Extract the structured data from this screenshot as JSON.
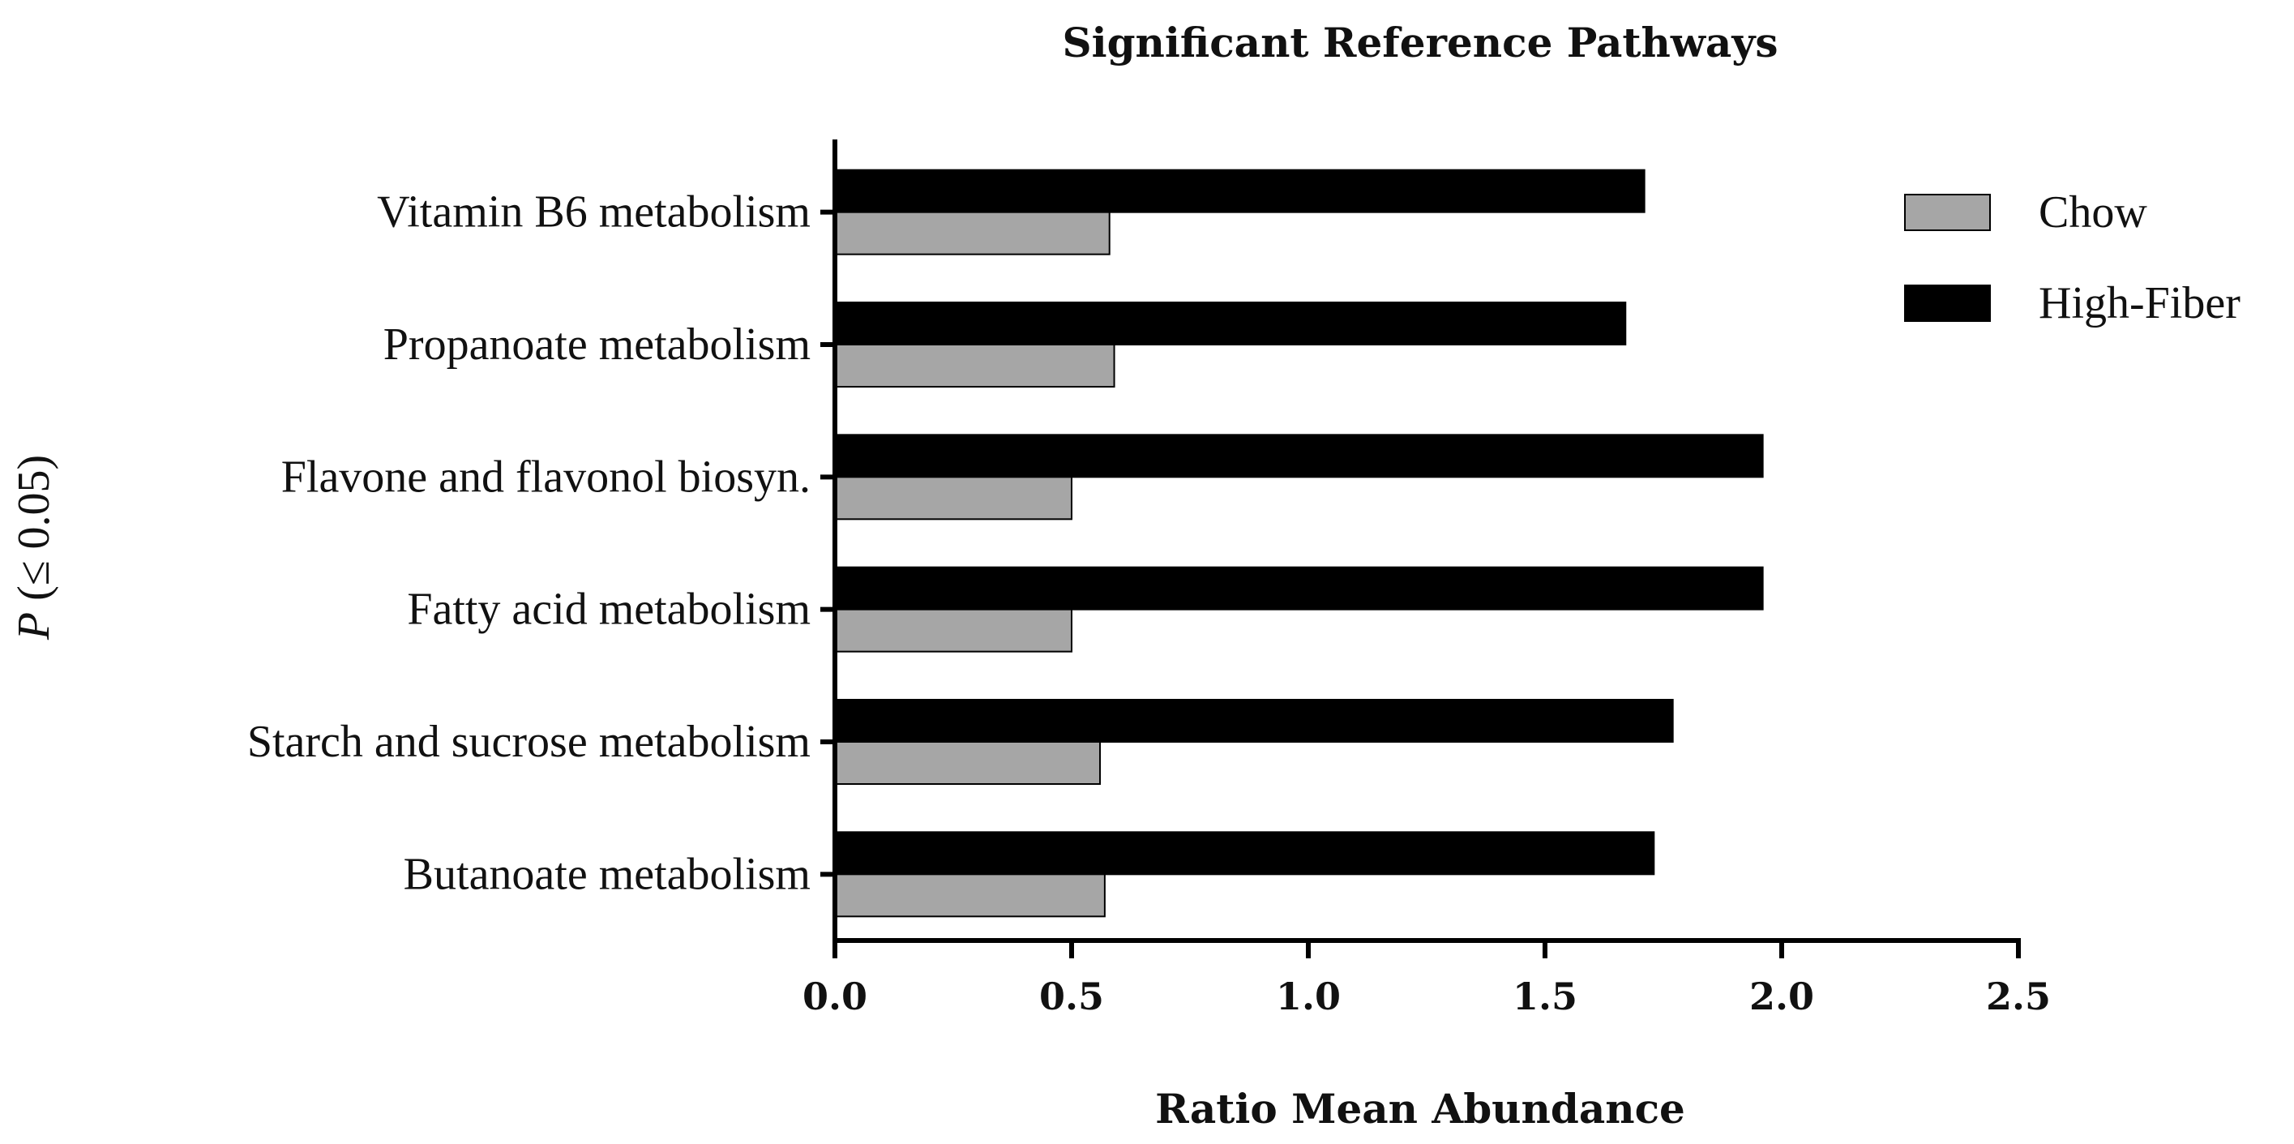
{
  "chart_data": {
    "type": "bar",
    "orientation": "horizontal",
    "title": "Significant Reference Pathways",
    "xlabel": "Ratio Mean Abundance",
    "ylabel": "P (≤ 0.05)",
    "xlim": [
      0,
      2.5
    ],
    "xticks": [
      "0.0",
      "0.5",
      "1.0",
      "1.5",
      "2.0",
      "2.5"
    ],
    "categories": [
      "Vitamin B6 metabolism",
      "Propanoate metabolism",
      "Flavone and flavonol biosyn.",
      "Fatty acid metabolism",
      "Starch and sucrose metabolism",
      "Butanoate metabolism"
    ],
    "series": [
      {
        "name": "Chow",
        "color": "#a6a6a6",
        "values": [
          0.58,
          0.59,
          0.5,
          0.5,
          0.56,
          0.57
        ]
      },
      {
        "name": "High-Fiber",
        "color": "#000000",
        "values": [
          1.71,
          1.67,
          1.96,
          1.96,
          1.77,
          1.73
        ]
      }
    ],
    "legend_position": "top-right",
    "grid": false
  }
}
